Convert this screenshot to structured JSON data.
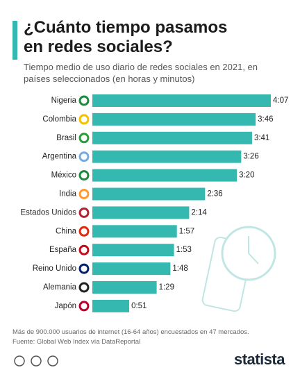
{
  "chart_data": {
    "type": "bar",
    "title": "¿Cuánto tiempo pasamos en redes sociales?",
    "subtitle": "Tiempo medio de uso diario de redes sociales en 2021, en países seleccionados (en horas y minutos)",
    "categories": [
      "Nigeria",
      "Colombia",
      "Brasil",
      "Argentina",
      "México",
      "India",
      "Estados Unidos",
      "China",
      "España",
      "Reino Unido",
      "Alemania",
      "Japón"
    ],
    "values": [
      247,
      226,
      221,
      206,
      200,
      156,
      134,
      117,
      113,
      108,
      89,
      51
    ],
    "value_labels": [
      "4:07",
      "3:46",
      "3:41",
      "3:26",
      "3:20",
      "2:36",
      "2:14",
      "1:57",
      "1:53",
      "1:48",
      "1:29",
      "0:51"
    ],
    "color": "#35b8b0",
    "note": "Más de 900.000 usuarios de internet (16-64 años) encuestados en 47 mercados.",
    "source": "Fuente: Global Web Index vía DataReportal"
  },
  "brand": "statista"
}
